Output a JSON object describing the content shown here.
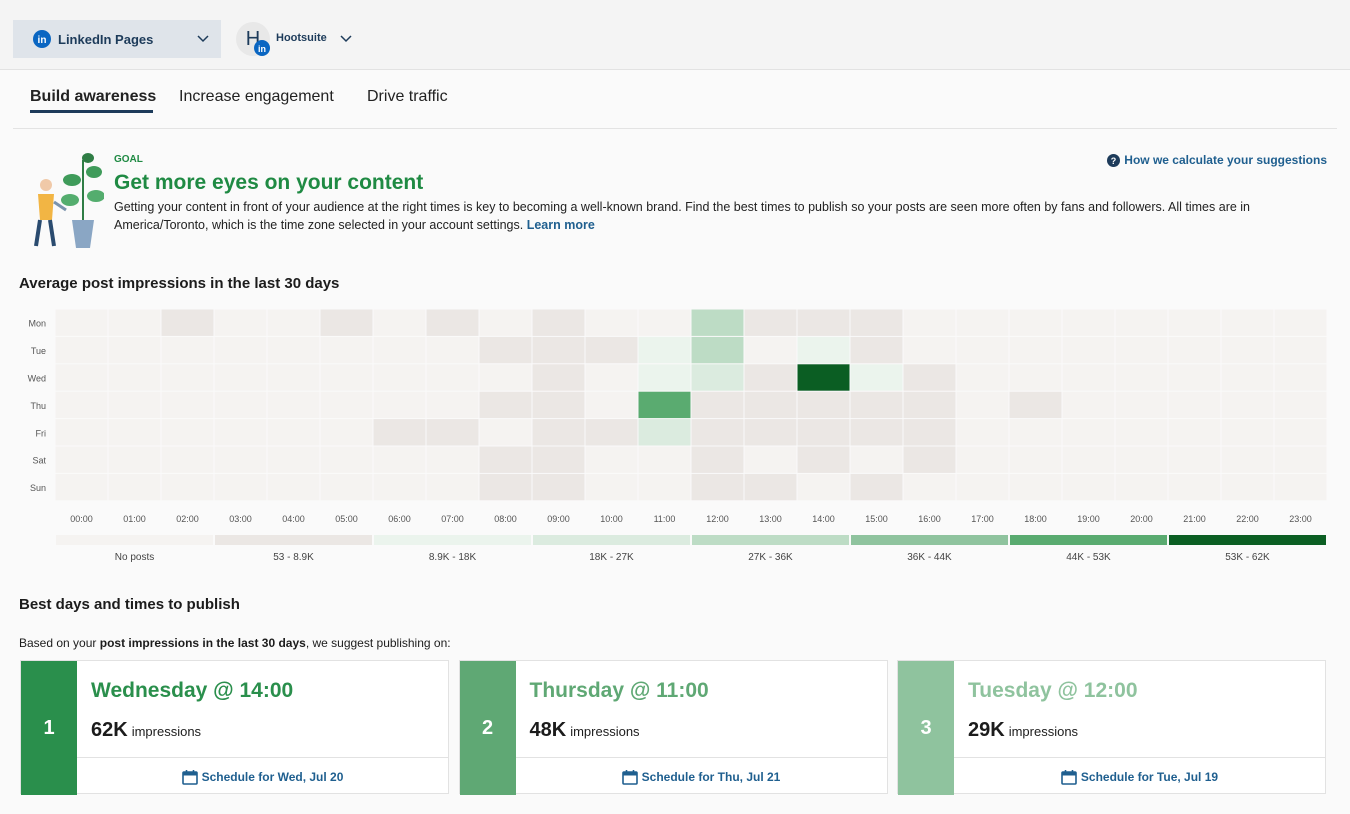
{
  "header": {
    "pages_selector": "LinkedIn Pages",
    "avatar": "H",
    "account": "Hootsuite"
  },
  "tabs": [
    "Build awareness",
    "Increase engagement",
    "Drive traffic"
  ],
  "goal": {
    "eyebrow": "GOAL",
    "title": "Get more eyes on your content",
    "description": "Getting your content in front of your audience at the right times is key to becoming a well-known brand. Find the best times to publish so your posts are seen more often by fans and followers. All times are in America/Toronto, which is the time zone selected in your account settings.",
    "link": "Learn more",
    "help": "How we calculate your suggestions"
  },
  "heatmap": {
    "title": "Average post impressions in the last 30 days",
    "days": [
      "Mon",
      "Tue",
      "Wed",
      "Thu",
      "Fri",
      "Sat",
      "Sun"
    ],
    "hours": [
      "00:00",
      "01:00",
      "02:00",
      "03:00",
      "04:00",
      "05:00",
      "06:00",
      "07:00",
      "08:00",
      "09:00",
      "10:00",
      "11:00",
      "12:00",
      "13:00",
      "14:00",
      "15:00",
      "16:00",
      "17:00",
      "18:00",
      "19:00",
      "20:00",
      "21:00",
      "22:00",
      "23:00"
    ],
    "legend": [
      {
        "label": "No posts",
        "color": "#f5f3f1"
      },
      {
        "label": "53 - 8.9K",
        "color": "#ebe7e4"
      },
      {
        "label": "8.9K - 18K",
        "color": "#ebf4ed"
      },
      {
        "label": "18K - 27K",
        "color": "#dbebdf"
      },
      {
        "label": "27K - 36K",
        "color": "#bddcc5"
      },
      {
        "label": "36K - 44K",
        "color": "#8fc39e"
      },
      {
        "label": "44K - 53K",
        "color": "#5aab70"
      },
      {
        "label": "53K - 62K",
        "color": "#0b5e23"
      }
    ],
    "levels": [
      [
        0,
        0,
        1,
        0,
        0,
        1,
        0,
        1,
        0,
        1,
        0,
        0,
        4,
        1,
        1,
        1,
        0,
        0,
        0,
        0,
        0,
        0,
        0,
        0
      ],
      [
        0,
        0,
        0,
        0,
        0,
        0,
        0,
        0,
        1,
        1,
        1,
        2,
        4,
        0,
        2,
        1,
        0,
        0,
        0,
        0,
        0,
        0,
        0,
        0
      ],
      [
        0,
        0,
        0,
        0,
        0,
        0,
        0,
        0,
        0,
        1,
        0,
        2,
        3,
        1,
        7,
        2,
        1,
        0,
        0,
        0,
        0,
        0,
        0,
        0
      ],
      [
        0,
        0,
        0,
        0,
        0,
        0,
        0,
        0,
        1,
        1,
        0,
        6,
        1,
        1,
        1,
        1,
        1,
        0,
        1,
        0,
        0,
        0,
        0,
        0
      ],
      [
        0,
        0,
        0,
        0,
        0,
        0,
        1,
        1,
        0,
        1,
        1,
        3,
        1,
        1,
        1,
        1,
        1,
        0,
        0,
        0,
        0,
        0,
        0,
        0
      ],
      [
        0,
        0,
        0,
        0,
        0,
        0,
        0,
        0,
        1,
        1,
        0,
        0,
        1,
        0,
        1,
        0,
        1,
        0,
        0,
        0,
        0,
        0,
        0,
        0
      ],
      [
        0,
        0,
        0,
        0,
        0,
        0,
        0,
        0,
        1,
        1,
        0,
        0,
        1,
        1,
        0,
        1,
        0,
        0,
        0,
        0,
        0,
        0,
        0,
        0
      ]
    ]
  },
  "best": {
    "title": "Best days and times to publish",
    "intro_before": "Based on your",
    "intro_bold": "post impressions in the last 30 days",
    "intro_after": ", we suggest publishing on:",
    "cards": [
      {
        "rank": 1,
        "color": "#2a8f4c",
        "title": "Wednesday @ 14:00",
        "value": "62K",
        "unit": "impressions",
        "action": "Schedule for Wed, Jul 20"
      },
      {
        "rank": 2,
        "color": "#5fa874",
        "title": "Thursday @ 11:00",
        "value": "48K",
        "unit": "impressions",
        "action": "Schedule for Thu, Jul 21"
      },
      {
        "rank": 3,
        "color": "#8fc39e",
        "title": "Tuesday @ 12:00",
        "value": "29K",
        "unit": "impressions",
        "action": "Schedule for Tue, Jul 19"
      }
    ]
  }
}
